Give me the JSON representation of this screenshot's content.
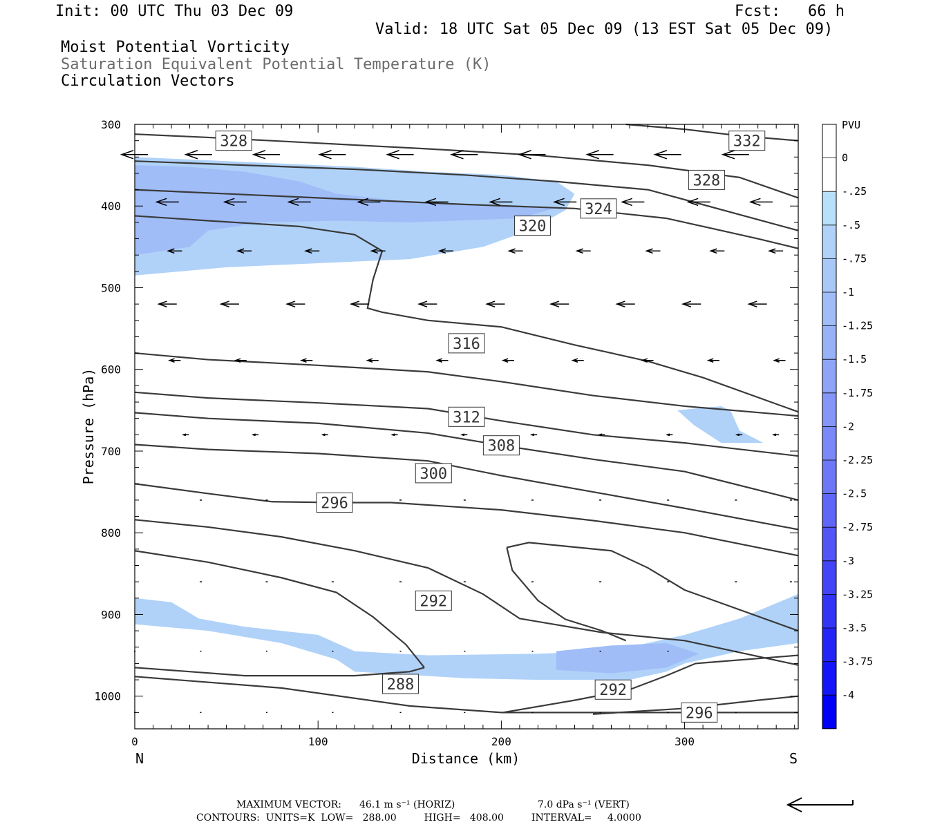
{
  "header": {
    "init": "Init: 00 UTC Thu 03 Dec 09",
    "fcst": "Fcst:   66 h",
    "valid": "Valid: 18 UTC Sat 05 Dec 09 (13 EST Sat 05 Dec 09)",
    "titles": [
      "Moist Potential Vorticity",
      "Saturation Equivalent Potential Temperature (K)",
      "Circulation Vectors"
    ]
  },
  "footer": {
    "max_vector_label": "MAXIMUM VECTOR:",
    "max_vector_horiz": "46.1 m s⁻¹ (HORIZ)",
    "max_vector_vert": "7.0 dPa s⁻¹ (VERT)",
    "contours": "CONTOURS:  UNITS=K  LOW=   288.00         HIGH=   408.00         INTERVAL=     4.0000"
  },
  "colors": {
    "contour": "#3a3a3a",
    "shade_light": "#b7e0fa",
    "shade_mid": "#a8c8f8",
    "vector": "#000000"
  },
  "chart_data": {
    "type": "cross-section",
    "xlabel": "Distance (km)",
    "ylabel": "Pressure (hPa)",
    "x_ticks": [
      0,
      100,
      200,
      300
    ],
    "y_ticks": [
      300,
      400,
      500,
      600,
      700,
      800,
      900,
      1000
    ],
    "xlim": [
      0,
      362
    ],
    "ylim": [
      300,
      1040
    ],
    "y_inverted": true,
    "left_end_label": "N",
    "right_end_label": "S",
    "colorbar": {
      "title": "PVU",
      "levels": [
        "0",
        "-.25",
        "-.5",
        "-.75",
        "-1",
        "-1.25",
        "-1.5",
        "-1.75",
        "-2",
        "-2.25",
        "-2.5",
        "-2.75",
        "-3",
        "-3.25",
        "-3.5",
        "-3.75",
        "-4"
      ],
      "colors": [
        "#ffffff",
        "#ffffff",
        "#b7e0fa",
        "#b0d2f9",
        "#a8c8f8",
        "#a0bdf8",
        "#98b2f8",
        "#8fa4f8",
        "#8596f8",
        "#7a88f8",
        "#6d77f8",
        "#6066f8",
        "#5254f8",
        "#4343f8",
        "#3434f8",
        "#2424f8",
        "#1414f8",
        "#0000f8"
      ]
    },
    "isentropes": [
      {
        "label": "332",
        "points": [
          [
            268,
            300
          ],
          [
            300,
            306
          ],
          [
            330,
            314
          ],
          [
            362,
            320
          ]
        ],
        "label_at": [
          334,
          320
        ]
      },
      {
        "label": "328",
        "points": [
          [
            0,
            312
          ],
          [
            40,
            316
          ],
          [
            100,
            323
          ],
          [
            160,
            330
          ],
          [
            220,
            338
          ],
          [
            280,
            350
          ],
          [
            330,
            365
          ],
          [
            362,
            390
          ]
        ],
        "label_at": [
          54,
          320
        ]
      },
      {
        "label": "328",
        "points": [
          [
            0,
            345
          ],
          [
            60,
            350
          ],
          [
            120,
            355
          ],
          [
            180,
            362
          ],
          [
            230,
            370
          ],
          [
            280,
            380
          ],
          [
            362,
            430
          ]
        ],
        "label_at": [
          312,
          368
        ]
      },
      {
        "label": "324",
        "points": [
          [
            0,
            380
          ],
          [
            60,
            386
          ],
          [
            120,
            392
          ],
          [
            180,
            398
          ],
          [
            240,
            403
          ],
          [
            290,
            415
          ],
          [
            340,
            440
          ],
          [
            362,
            452
          ]
        ],
        "label_at": [
          253,
          403
        ]
      },
      {
        "label": "320",
        "points": [
          [
            0,
            412
          ],
          [
            40,
            418
          ],
          [
            90,
            425
          ],
          [
            120,
            435
          ],
          [
            135,
            455
          ],
          [
            130,
            490
          ],
          [
            127,
            525
          ],
          [
            135,
            530
          ],
          [
            160,
            540
          ],
          [
            200,
            548
          ],
          [
            240,
            570
          ],
          [
            280,
            590
          ],
          [
            310,
            610
          ],
          [
            362,
            652
          ]
        ],
        "label_at": [
          217,
          424
        ]
      },
      {
        "label": "316",
        "points": [
          [
            0,
            580
          ],
          [
            40,
            588
          ],
          [
            100,
            595
          ],
          [
            160,
            603
          ],
          [
            200,
            615
          ],
          [
            250,
            632
          ],
          [
            300,
            645
          ],
          [
            362,
            657
          ]
        ],
        "label_at": [
          181,
          568
        ]
      },
      {
        "label": "312",
        "points": [
          [
            0,
            628
          ],
          [
            40,
            635
          ],
          [
            100,
            641
          ],
          [
            160,
            648
          ],
          [
            200,
            663
          ],
          [
            250,
            680
          ],
          [
            300,
            690
          ],
          [
            362,
            706
          ]
        ],
        "label_at": [
          181,
          658
        ]
      },
      {
        "label": "308",
        "points": [
          [
            0,
            653
          ],
          [
            40,
            660
          ],
          [
            100,
            666
          ],
          [
            160,
            678
          ],
          [
            200,
            693
          ],
          [
            250,
            710
          ],
          [
            300,
            725
          ],
          [
            362,
            760
          ]
        ],
        "label_at": [
          200,
          693
        ]
      },
      {
        "label": "300",
        "points": [
          [
            0,
            692
          ],
          [
            40,
            698
          ],
          [
            100,
            703
          ],
          [
            160,
            712
          ],
          [
            200,
            730
          ],
          [
            250,
            750
          ],
          [
            300,
            770
          ],
          [
            362,
            796
          ]
        ],
        "label_at": [
          163,
          727
        ]
      },
      {
        "label": "296",
        "points": [
          [
            0,
            740
          ],
          [
            40,
            752
          ],
          [
            75,
            762
          ],
          [
            110,
            763
          ],
          [
            140,
            763
          ],
          [
            200,
            772
          ],
          [
            250,
            785
          ],
          [
            300,
            800
          ],
          [
            362,
            828
          ]
        ],
        "label_at": [
          109,
          763
        ]
      },
      {
        "label": "292",
        "points": [
          [
            0,
            784
          ],
          [
            40,
            793
          ],
          [
            80,
            805
          ],
          [
            120,
            822
          ],
          [
            160,
            843
          ],
          [
            190,
            875
          ],
          [
            210,
            905
          ],
          [
            255,
            922
          ],
          [
            300,
            932
          ],
          [
            362,
            962
          ]
        ],
        "label_at": [
          163,
          883
        ]
      },
      {
        "label": "288",
        "points": [
          [
            0,
            822
          ],
          [
            40,
            836
          ],
          [
            80,
            855
          ],
          [
            110,
            873
          ],
          [
            130,
            903
          ],
          [
            148,
            937
          ],
          [
            158,
            965
          ]
        ],
        "label_at": [
          145,
          985
        ]
      },
      {
        "label": "292",
        "points": [
          [
            203,
            818
          ],
          [
            215,
            812
          ],
          [
            260,
            822
          ],
          [
            280,
            843
          ],
          [
            300,
            870
          ],
          [
            362,
            920
          ]
        ],
        "label_at": [
          0,
          0
        ]
      },
      {
        "label": "",
        "points": [
          [
            203,
            818
          ],
          [
            206,
            846
          ],
          [
            220,
            883
          ],
          [
            235,
            906
          ],
          [
            255,
            920
          ],
          [
            268,
            932
          ]
        ],
        "label_at": [
          0,
          0
        ]
      },
      {
        "label": "292",
        "points": [
          [
            0,
            965
          ],
          [
            60,
            975
          ],
          [
            120,
            975
          ],
          [
            150,
            970
          ],
          [
            158,
            965
          ]
        ],
        "label_at": [
          0,
          0
        ]
      },
      {
        "label": "292",
        "points": [
          [
            201,
            1020
          ],
          [
            240,
            1005
          ],
          [
            270,
            992
          ],
          [
            290,
            975
          ],
          [
            306,
            960
          ],
          [
            362,
            950
          ]
        ],
        "label_at": [
          261,
          992
        ]
      },
      {
        "label": "296",
        "points": [
          [
            0,
            976
          ],
          [
            80,
            990
          ],
          [
            150,
            1012
          ],
          [
            200,
            1020
          ],
          [
            300,
            1020
          ],
          [
            362,
            1020
          ]
        ],
        "label_at": [
          308,
          1020
        ]
      },
      {
        "label": "",
        "points": [
          [
            250,
            1022
          ],
          [
            300,
            1015
          ],
          [
            340,
            1005
          ],
          [
            362,
            1000
          ]
        ],
        "label_at": [
          0,
          0
        ]
      }
    ],
    "shaded_regions": [
      {
        "level": "-.5",
        "points": [
          [
            0,
            340
          ],
          [
            30,
            343
          ],
          [
            80,
            348
          ],
          [
            120,
            352
          ],
          [
            160,
            358
          ],
          [
            200,
            362
          ],
          [
            230,
            370
          ],
          [
            240,
            385
          ],
          [
            235,
            405
          ],
          [
            215,
            430
          ],
          [
            190,
            450
          ],
          [
            150,
            465
          ],
          [
            100,
            470
          ],
          [
            50,
            475
          ],
          [
            0,
            485
          ]
        ]
      },
      {
        "level": "-1",
        "points": [
          [
            0,
            350
          ],
          [
            30,
            352
          ],
          [
            60,
            358
          ],
          [
            90,
            370
          ],
          [
            110,
            385
          ],
          [
            150,
            395
          ],
          [
            190,
            400
          ],
          [
            230,
            402
          ],
          [
            210,
            415
          ],
          [
            150,
            420
          ],
          [
            110,
            418
          ],
          [
            70,
            420
          ],
          [
            40,
            430
          ],
          [
            30,
            450
          ],
          [
            0,
            460
          ]
        ]
      },
      {
        "level": "-.5",
        "points": [
          [
            296,
            650
          ],
          [
            320,
            645
          ],
          [
            325,
            650
          ],
          [
            330,
            675
          ],
          [
            343,
            690
          ],
          [
            320,
            690
          ],
          [
            305,
            668
          ],
          [
            296,
            650
          ]
        ]
      },
      {
        "level": "-.5",
        "points": [
          [
            0,
            880
          ],
          [
            20,
            885
          ],
          [
            35,
            905
          ],
          [
            60,
            915
          ],
          [
            100,
            925
          ],
          [
            110,
            935
          ],
          [
            120,
            945
          ],
          [
            160,
            950
          ],
          [
            220,
            948
          ],
          [
            260,
            945
          ],
          [
            300,
            925
          ],
          [
            330,
            905
          ],
          [
            362,
            875
          ],
          [
            362,
            935
          ],
          [
            330,
            945
          ],
          [
            300,
            960
          ],
          [
            290,
            970
          ],
          [
            270,
            980
          ],
          [
            220,
            980
          ],
          [
            180,
            978
          ],
          [
            120,
            970
          ],
          [
            110,
            955
          ],
          [
            80,
            935
          ],
          [
            40,
            920
          ],
          [
            0,
            912
          ]
        ]
      },
      {
        "level": "-1",
        "points": [
          [
            230,
            945
          ],
          [
            260,
            938
          ],
          [
            290,
            935
          ],
          [
            308,
            948
          ],
          [
            290,
            965
          ],
          [
            260,
            972
          ],
          [
            230,
            968
          ]
        ]
      }
    ],
    "vector_rows": [
      {
        "p": 337,
        "xs": [
          0,
          35,
          72,
          108,
          145,
          180,
          217,
          254,
          291,
          328
        ],
        "len": 38
      },
      {
        "p": 395,
        "xs": [
          18,
          55,
          90,
          128,
          165,
          200,
          235,
          272,
          308,
          342
        ],
        "len": 32
      },
      {
        "p": 455,
        "xs": [
          22,
          60,
          97,
          133,
          170,
          208,
          245,
          283,
          318,
          350
        ],
        "len": 20
      },
      {
        "p": 520,
        "xs": [
          18,
          52,
          88,
          123,
          160,
          197,
          232,
          268,
          304,
          340
        ],
        "len": 26
      },
      {
        "p": 589,
        "xs": [
          22,
          58,
          94,
          130,
          168,
          204,
          242,
          280,
          316,
          352
        ],
        "len": 16
      },
      {
        "p": 680,
        "xs": [
          28,
          66,
          104,
          142,
          180,
          218,
          255,
          292,
          330,
          350
        ],
        "len": 8
      },
      {
        "p": 760,
        "xs": [
          36,
          72,
          108,
          145,
          180,
          217,
          254,
          291,
          328,
          358
        ],
        "len": 3
      },
      {
        "p": 860,
        "xs": [
          36,
          72,
          108,
          145,
          180,
          217,
          254,
          291,
          328,
          358
        ],
        "len": 3
      },
      {
        "p": 945,
        "xs": [
          0,
          36,
          72,
          108,
          145,
          180,
          217,
          254,
          291,
          328
        ],
        "len": 2
      },
      {
        "p": 1020,
        "xs": [
          0,
          36,
          72,
          108,
          145,
          180,
          217,
          254,
          291,
          328
        ],
        "len": 2
      }
    ]
  }
}
